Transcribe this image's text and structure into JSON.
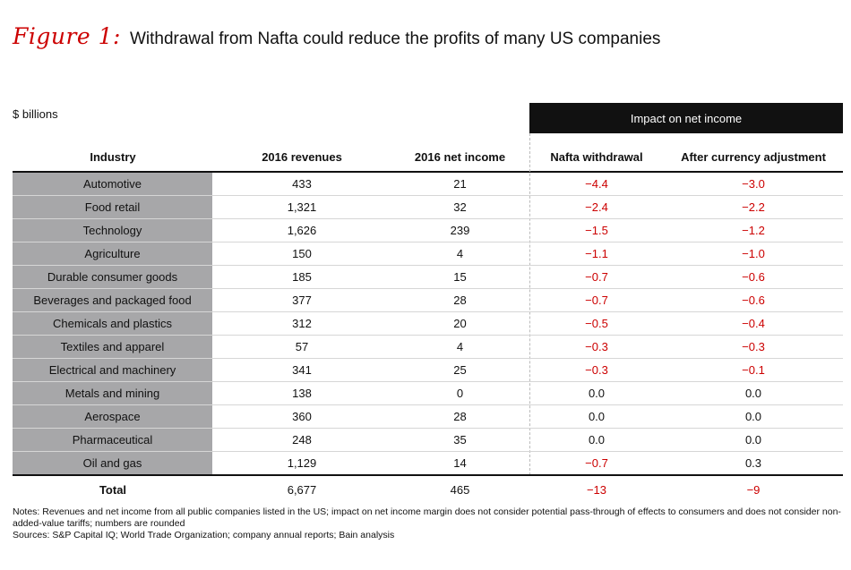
{
  "figure": {
    "label": "Figure 1:",
    "title": "Withdrawal from Nafta could reduce the profits of many US companies"
  },
  "units": "$ billions",
  "impact_header": "Impact on net income",
  "columns": {
    "industry": "Industry",
    "revenues": "2016 revenues",
    "net_income": "2016 net income",
    "nafta": "Nafta withdrawal",
    "currency": "After currency adjustment"
  },
  "rows": [
    {
      "industry": "Automotive",
      "revenues": "433",
      "net_income": "21",
      "nafta": "−4.4",
      "currency": "−3.0"
    },
    {
      "industry": "Food retail",
      "revenues": "1,321",
      "net_income": "32",
      "nafta": "−2.4",
      "currency": "−2.2"
    },
    {
      "industry": "Technology",
      "revenues": "1,626",
      "net_income": "239",
      "nafta": "−1.5",
      "currency": "−1.2"
    },
    {
      "industry": "Agriculture",
      "revenues": "150",
      "net_income": "4",
      "nafta": "−1.1",
      "currency": "−1.0"
    },
    {
      "industry": "Durable consumer goods",
      "revenues": "185",
      "net_income": "15",
      "nafta": "−0.7",
      "currency": "−0.6"
    },
    {
      "industry": "Beverages and packaged food",
      "revenues": "377",
      "net_income": "28",
      "nafta": "−0.7",
      "currency": "−0.6"
    },
    {
      "industry": "Chemicals and plastics",
      "revenues": "312",
      "net_income": "20",
      "nafta": "−0.5",
      "currency": "−0.4"
    },
    {
      "industry": "Textiles and apparel",
      "revenues": "57",
      "net_income": "4",
      "nafta": "−0.3",
      "currency": "−0.3"
    },
    {
      "industry": "Electrical and machinery",
      "revenues": "341",
      "net_income": "25",
      "nafta": "−0.3",
      "currency": "−0.1"
    },
    {
      "industry": "Metals and mining",
      "revenues": "138",
      "net_income": "0",
      "nafta": "0.0",
      "currency": "0.0"
    },
    {
      "industry": "Aerospace",
      "revenues": "360",
      "net_income": "28",
      "nafta": "0.0",
      "currency": "0.0"
    },
    {
      "industry": "Pharmaceutical",
      "revenues": "248",
      "net_income": "35",
      "nafta": "0.0",
      "currency": "0.0"
    },
    {
      "industry": "Oil and gas",
      "revenues": "1,129",
      "net_income": "14",
      "nafta": "−0.7",
      "currency": "0.3"
    }
  ],
  "total": {
    "industry": "Total",
    "revenues": "6,677",
    "net_income": "465",
    "nafta": "−13",
    "currency": "−9"
  },
  "notes": "Notes: Revenues and net income from all public companies listed in the US; impact on net income margin does not consider potential pass-through of effects to consumers and does not consider non-added-value tariffs; numbers are rounded",
  "sources": "Sources: S&P Capital IQ; World Trade Organization; company annual reports; Bain analysis",
  "colors": {
    "accent_red": "#cc0000",
    "industry_shade": "#a7a7a9",
    "banner": "#111111"
  }
}
